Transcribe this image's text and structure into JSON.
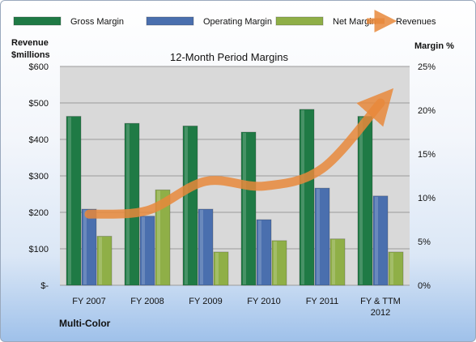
{
  "chart_data": {
    "type": "bar",
    "title": "12-Month Period Margins",
    "categories": [
      "FY 2007",
      "FY 2008",
      "FY 2009",
      "FY 2010",
      "FY 2011",
      "FY & TTM 2012"
    ],
    "series": [
      {
        "name": "Gross Margin",
        "axis": "right",
        "unit": "%",
        "color": "#1f7a45",
        "values": [
          19.3,
          18.5,
          18.2,
          17.5,
          20.1,
          19.3
        ]
      },
      {
        "name": "Operating Margin",
        "axis": "right",
        "unit": "%",
        "color": "#4a6fae",
        "values": [
          8.7,
          7.9,
          8.7,
          7.5,
          11.1,
          10.2
        ]
      },
      {
        "name": "Net Margin",
        "axis": "right",
        "unit": "%",
        "color": "#8faf47",
        "values": [
          5.6,
          10.9,
          3.8,
          5.1,
          5.3,
          3.8
        ]
      },
      {
        "name": "Revenues",
        "type": "line",
        "axis": "left",
        "unit": "$millions",
        "color": "#e8883b",
        "values": [
          195,
          205,
          285,
          272,
          320,
          500
        ]
      }
    ],
    "left_axis": {
      "label_line1": "Revenue",
      "label_line2": "$millions",
      "ticks": [
        "$-",
        "$100",
        "$200",
        "$300",
        "$400",
        "$500",
        "$600"
      ],
      "range": [
        0,
        600
      ]
    },
    "right_axis": {
      "label": "Margin %",
      "ticks": [
        "0%",
        "5%",
        "10%",
        "15%",
        "20%",
        "25%"
      ],
      "range": [
        0,
        25
      ]
    },
    "legend_position": "top",
    "grid": true,
    "company": "Multi-Color",
    "colors": {
      "plot_bg": "#d9d9d9",
      "grid": "#9c9c9c"
    }
  }
}
